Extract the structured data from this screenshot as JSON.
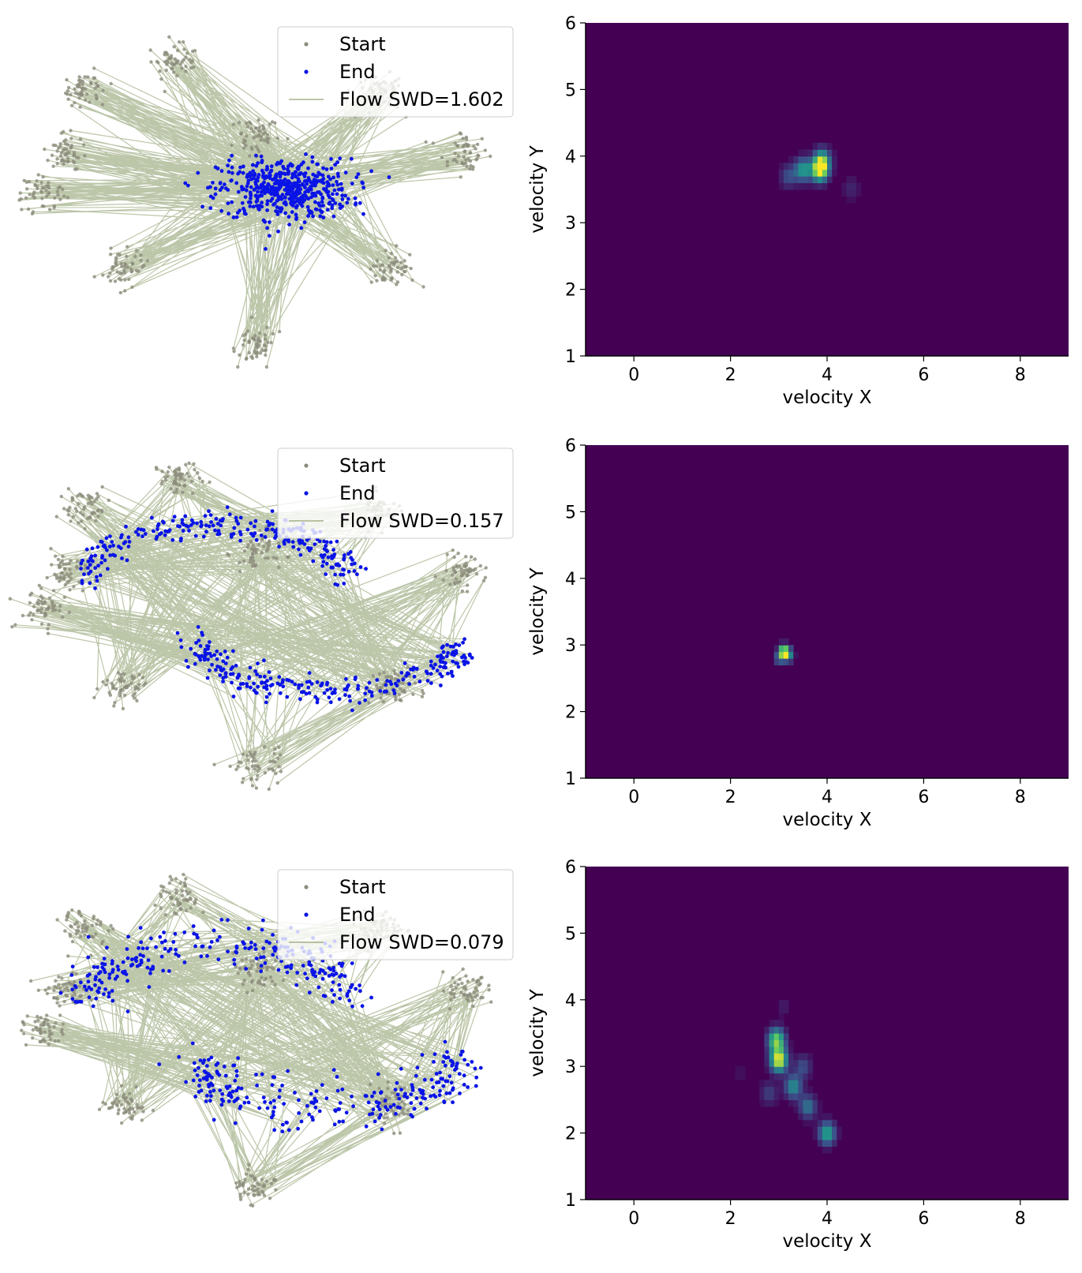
{
  "colors": {
    "start_points": "#8c8c7c",
    "end_points": "#0a14e6",
    "flow_lines": "#6b8040",
    "heatmap_background": "#440154"
  },
  "legend_labels": {
    "start": "Start",
    "end": "End"
  },
  "chart_data": [
    {
      "type": "scatter",
      "panel": "row-1-flow",
      "legend": [
        "Start",
        "End",
        "Flow SWD=1.602"
      ],
      "legend_placement": "top-right",
      "axes_visible": false,
      "start_clusters": [
        [
          -4.8,
          1.1
        ],
        [
          -4.3,
          3.0
        ],
        [
          -2.0,
          3.9
        ],
        [
          0.0,
          1.6
        ],
        [
          3.1,
          2.9
        ],
        [
          5.2,
          1.1
        ],
        [
          3.4,
          -2.4
        ],
        [
          0.0,
          -4.8
        ],
        [
          -3.3,
          -2.4
        ],
        [
          -5.3,
          -0.1
        ]
      ],
      "end_center": [
        0.7,
        0.0
      ],
      "end_spread": [
        1.5,
        0.45
      ],
      "end_shape": "blob",
      "swd": 1.602
    },
    {
      "type": "heatmap",
      "panel": "row-1-velocity",
      "xlabel": "velocity X",
      "ylabel": "velocity Y",
      "xlim": [
        -1,
        9
      ],
      "ylim": [
        1,
        6
      ],
      "xticks": [
        0,
        2,
        4,
        6,
        8
      ],
      "yticks": [
        1,
        2,
        3,
        4,
        5,
        6
      ],
      "colormap": "viridis",
      "hotspots": [
        {
          "x": 3.85,
          "y": 3.8,
          "weight": 1.0
        },
        {
          "x": 3.5,
          "y": 3.8,
          "weight": 0.55
        },
        {
          "x": 3.9,
          "y": 3.95,
          "weight": 0.55
        },
        {
          "x": 3.2,
          "y": 3.7,
          "weight": 0.25
        },
        {
          "x": 4.5,
          "y": 3.52,
          "weight": 0.12
        }
      ]
    },
    {
      "type": "scatter",
      "panel": "row-2-flow",
      "legend": [
        "Start",
        "End",
        "Flow SWD=0.157"
      ],
      "legend_placement": "top-right",
      "axes_visible": false,
      "start_clusters": [
        [
          -4.8,
          1.1
        ],
        [
          -4.3,
          3.0
        ],
        [
          -2.0,
          3.9
        ],
        [
          0.0,
          1.6
        ],
        [
          3.1,
          2.9
        ],
        [
          5.2,
          1.1
        ],
        [
          3.4,
          -2.4
        ],
        [
          0.0,
          -4.8
        ],
        [
          -3.3,
          -2.4
        ],
        [
          -5.3,
          -0.1
        ]
      ],
      "end_shape": "two-moons",
      "swd": 0.157
    },
    {
      "type": "heatmap",
      "panel": "row-2-velocity",
      "xlabel": "velocity X",
      "ylabel": "velocity Y",
      "xlim": [
        -1,
        9
      ],
      "ylim": [
        1,
        6
      ],
      "xticks": [
        0,
        2,
        4,
        6,
        8
      ],
      "yticks": [
        1,
        2,
        3,
        4,
        5,
        6
      ],
      "colormap": "viridis",
      "hotspots": [
        {
          "x": 3.1,
          "y": 2.9,
          "weight": 1.0
        },
        {
          "x": 3.2,
          "y": 2.85,
          "weight": 0.5
        },
        {
          "x": 3.0,
          "y": 2.8,
          "weight": 0.3
        }
      ]
    },
    {
      "type": "scatter",
      "panel": "row-3-flow",
      "legend": [
        "Start",
        "End",
        "Flow SWD=0.079"
      ],
      "legend_placement": "top-right",
      "axes_visible": false,
      "start_clusters": [
        [
          -4.8,
          1.1
        ],
        [
          -4.3,
          3.0
        ],
        [
          -2.0,
          3.9
        ],
        [
          0.0,
          1.6
        ],
        [
          3.1,
          2.9
        ],
        [
          5.2,
          1.1
        ],
        [
          3.4,
          -2.4
        ],
        [
          0.0,
          -4.8
        ],
        [
          -3.3,
          -2.4
        ],
        [
          -5.3,
          -0.1
        ]
      ],
      "end_shape": "two-moons",
      "swd": 0.079
    },
    {
      "type": "heatmap",
      "panel": "row-3-velocity",
      "xlabel": "velocity X",
      "ylabel": "velocity Y",
      "xlim": [
        -1,
        9
      ],
      "ylim": [
        1,
        6
      ],
      "xticks": [
        0,
        2,
        4,
        6,
        8
      ],
      "yticks": [
        1,
        2,
        3,
        4,
        5,
        6
      ],
      "colormap": "viridis",
      "hotspots": [
        {
          "x": 3.0,
          "y": 3.1,
          "weight": 1.0
        },
        {
          "x": 2.95,
          "y": 3.4,
          "weight": 0.8
        },
        {
          "x": 3.3,
          "y": 2.7,
          "weight": 0.5
        },
        {
          "x": 3.6,
          "y": 2.4,
          "weight": 0.4
        },
        {
          "x": 4.0,
          "y": 2.0,
          "weight": 0.6
        },
        {
          "x": 3.5,
          "y": 3.0,
          "weight": 0.25
        },
        {
          "x": 2.8,
          "y": 2.6,
          "weight": 0.2
        },
        {
          "x": 2.2,
          "y": 2.9,
          "weight": 0.05
        },
        {
          "x": 3.1,
          "y": 3.9,
          "weight": 0.08
        }
      ]
    }
  ]
}
